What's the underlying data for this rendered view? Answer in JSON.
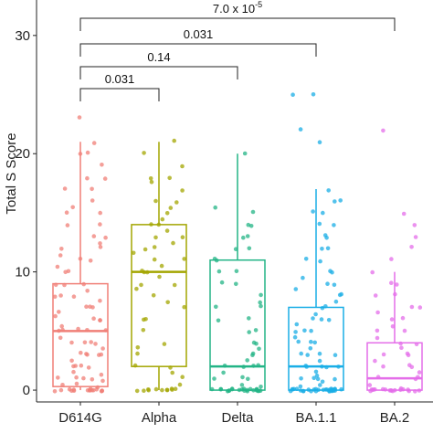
{
  "chart_data": {
    "type": "box",
    "ylabel": "Total S Score",
    "ylim": [
      -1,
      33
    ],
    "yticks": [
      0,
      10,
      20,
      30
    ],
    "categories": [
      "D614G",
      "Alpha",
      "Delta",
      "BA.1.1",
      "BA.2"
    ],
    "colors": {
      "D614G": "#F07F77",
      "Alpha": "#A3A500",
      "Delta": "#23B486",
      "BA.1.1": "#1AAEE6",
      "BA.2": "#E46EE9"
    },
    "boxes": [
      {
        "name": "D614G",
        "q1": 0.3,
        "median": 5,
        "q3": 9,
        "whisker_low": 0,
        "whisker_high": 21
      },
      {
        "name": "Alpha",
        "q1": 2,
        "median": 10,
        "q3": 14,
        "whisker_low": 0,
        "whisker_high": 21
      },
      {
        "name": "Delta",
        "q1": 0,
        "median": 2,
        "q3": 11,
        "whisker_low": 0,
        "whisker_high": 20
      },
      {
        "name": "BA.1.1",
        "q1": 0,
        "median": 2,
        "q3": 7,
        "whisker_low": 0,
        "whisker_high": 17
      },
      {
        "name": "BA.2",
        "q1": 0,
        "median": 1,
        "q3": 4,
        "whisker_low": 0,
        "whisker_high": 10
      }
    ],
    "points": {
      "D614G": [
        0,
        0,
        0,
        0,
        0,
        0,
        0,
        0,
        0,
        0,
        0,
        0,
        0,
        0,
        0,
        0,
        0.2,
        0.4,
        0.5,
        0.8,
        1,
        1,
        1,
        1,
        1.2,
        1.5,
        2,
        2,
        2,
        2,
        2.5,
        3,
        3,
        3,
        3,
        3.2,
        3.5,
        4,
        4,
        4,
        4,
        4.5,
        5,
        5,
        5,
        5,
        5.2,
        5.5,
        6,
        6,
        6,
        6.2,
        6.5,
        7,
        7,
        7,
        7.5,
        8,
        8,
        8,
        8.5,
        9,
        9,
        9,
        10,
        10,
        10.5,
        11,
        11,
        11.5,
        12,
        12,
        12.5,
        13,
        13,
        14,
        14,
        15,
        15,
        15.5,
        16,
        17,
        17,
        18,
        18,
        19,
        20,
        20,
        21,
        23
      ],
      "Alpha": [
        0,
        0,
        0,
        0,
        0,
        0,
        0,
        0,
        0,
        0,
        0.2,
        0.5,
        1,
        1.5,
        2,
        2,
        3,
        3.5,
        4,
        5,
        6,
        6,
        7,
        7.5,
        8,
        8.5,
        9,
        9,
        9.5,
        10,
        10,
        10,
        10.5,
        11,
        11,
        11.5,
        12,
        12,
        12.5,
        13,
        13,
        13.5,
        14,
        14,
        14.5,
        15,
        15.5,
        16,
        16,
        17,
        17.5,
        18,
        18,
        19,
        20,
        21
      ],
      "Delta": [
        0,
        0,
        0,
        0,
        0,
        0,
        0,
        0,
        0,
        0,
        0,
        0,
        0,
        0,
        0,
        0,
        0,
        0,
        0,
        0,
        0,
        0,
        0.3,
        0.5,
        1,
        1,
        1,
        1.5,
        2,
        2,
        2,
        2,
        2.5,
        3,
        3,
        3.5,
        4,
        4,
        5,
        5,
        6,
        6,
        7,
        7,
        7.5,
        8,
        9,
        9,
        10,
        10,
        11,
        11,
        12,
        12,
        13,
        13,
        14,
        14,
        15,
        15.5,
        20
      ],
      "BA.1.1": [
        0,
        0,
        0,
        0,
        0,
        0,
        0,
        0,
        0,
        0,
        0,
        0,
        0,
        0,
        0,
        0,
        0,
        0,
        0,
        0,
        0,
        0,
        0,
        0,
        0,
        0,
        0,
        0,
        0,
        0,
        0.2,
        0.5,
        0.8,
        1,
        1,
        1,
        1,
        1.2,
        1.5,
        2,
        2,
        2,
        2,
        2,
        2.5,
        3,
        3,
        3,
        3,
        3.5,
        4,
        4,
        4,
        4.5,
        5,
        5,
        5,
        5.5,
        6,
        6,
        6,
        6.5,
        7,
        7,
        7.5,
        8,
        8,
        8.5,
        9,
        9,
        9.5,
        10,
        10,
        11,
        11,
        12,
        12,
        13,
        13,
        14,
        14,
        15,
        15,
        16,
        16,
        17,
        21,
        22,
        25,
        25
      ],
      "BA.2": [
        0,
        0,
        0,
        0,
        0,
        0,
        0,
        0,
        0,
        0,
        0,
        0,
        0,
        0,
        0,
        0,
        0,
        0,
        0.2,
        0.5,
        1,
        1,
        1,
        1.5,
        2,
        2,
        2,
        2.5,
        3,
        3,
        3,
        3.5,
        4,
        4,
        4.5,
        5,
        5,
        5.5,
        6,
        6,
        6.5,
        7,
        7,
        8,
        8,
        9,
        9,
        10,
        11,
        12,
        13,
        14,
        15,
        22
      ]
    },
    "comparisons": [
      {
        "from": "D614G",
        "to": "Alpha",
        "label": "0.031"
      },
      {
        "from": "D614G",
        "to": "Delta",
        "label": "0.14"
      },
      {
        "from": "D614G",
        "to": "BA.1.1",
        "label": "0.031"
      },
      {
        "from": "D614G",
        "to": "BA.2",
        "label_base": "7.0 x 10",
        "label_exp": "-5"
      }
    ]
  }
}
